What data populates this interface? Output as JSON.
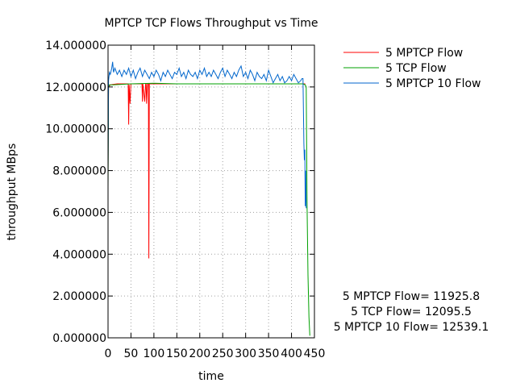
{
  "chart_data": {
    "type": "line",
    "title": "MPTCP TCP Flows Throughput vs Time",
    "xlabel": "time",
    "ylabel": "throughput MBps",
    "xlim": [
      0,
      450
    ],
    "ylim": [
      0,
      14
    ],
    "x_ticks": [
      "0",
      "50",
      "100",
      "150",
      "200",
      "250",
      "300",
      "350",
      "400",
      "450"
    ],
    "y_ticks": [
      "0.000000",
      "2.000000",
      "4.000000",
      "6.000000",
      "8.000000",
      "10.000000",
      "12.000000",
      "14.000000"
    ],
    "grid": true,
    "legend_position": "top-right",
    "annotations": [
      "5 MPTCP Flow= 11925.8",
      "5 TCP Flow= 12095.5",
      "5 MPTCP 10 Flow= 12539.1"
    ],
    "series": [
      {
        "name": "5 MPTCP Flow",
        "color": "#ff0000",
        "x": [
          0,
          1,
          3,
          5,
          10,
          20,
          30,
          40,
          44,
          45,
          46,
          48,
          50,
          60,
          70,
          74,
          75,
          76,
          80,
          82,
          83,
          84,
          86,
          88,
          89,
          90,
          92,
          95,
          100,
          150,
          200,
          250,
          300,
          350,
          400,
          420,
          430
        ],
        "y": [
          8.0,
          12.0,
          12.05,
          12.1,
          12.12,
          12.15,
          12.15,
          12.15,
          12.15,
          10.2,
          12.1,
          11.2,
          12.15,
          12.15,
          12.15,
          12.15,
          11.3,
          12.15,
          11.3,
          12.15,
          12.15,
          11.2,
          12.15,
          12.15,
          3.8,
          12.15,
          12.15,
          12.15,
          12.15,
          12.15,
          12.15,
          12.15,
          12.15,
          12.15,
          12.15,
          12.15,
          12.15
        ]
      },
      {
        "name": "5 TCP Flow",
        "color": "#00a000",
        "x": [
          0,
          1,
          3,
          10,
          50,
          100,
          150,
          200,
          250,
          300,
          350,
          400,
          425,
          430,
          432,
          434,
          436,
          438,
          440
        ],
        "y": [
          7.2,
          12.0,
          12.1,
          12.1,
          12.15,
          12.18,
          12.15,
          12.15,
          12.15,
          12.15,
          12.15,
          12.15,
          12.15,
          12.1,
          12.0,
          6.2,
          3.0,
          1.0,
          0.1
        ]
      },
      {
        "name": "5 MPTCP 10 Flow",
        "color": "#0066cc",
        "x": [
          0,
          1,
          3,
          5,
          8,
          10,
          12,
          15,
          20,
          25,
          30,
          35,
          40,
          45,
          50,
          55,
          60,
          65,
          70,
          75,
          80,
          85,
          90,
          95,
          100,
          105,
          110,
          115,
          120,
          125,
          130,
          135,
          140,
          145,
          150,
          155,
          160,
          165,
          170,
          175,
          180,
          185,
          190,
          195,
          200,
          205,
          210,
          215,
          220,
          225,
          230,
          235,
          240,
          245,
          250,
          255,
          260,
          265,
          270,
          275,
          280,
          285,
          290,
          295,
          300,
          305,
          310,
          315,
          320,
          325,
          330,
          335,
          340,
          345,
          350,
          355,
          360,
          365,
          370,
          375,
          380,
          385,
          390,
          395,
          400,
          405,
          410,
          415,
          420,
          423,
          425,
          427,
          428,
          429,
          430,
          431,
          432
        ],
        "y": [
          8.0,
          12.3,
          12.7,
          12.6,
          12.9,
          13.2,
          12.7,
          12.9,
          12.6,
          12.8,
          12.5,
          12.8,
          12.6,
          12.9,
          12.5,
          12.8,
          12.4,
          12.7,
          12.9,
          12.5,
          12.8,
          12.6,
          12.4,
          12.7,
          12.5,
          12.8,
          12.6,
          12.3,
          12.7,
          12.5,
          12.8,
          12.6,
          12.4,
          12.7,
          12.6,
          12.9,
          12.5,
          12.7,
          12.4,
          12.8,
          12.6,
          12.5,
          12.7,
          12.4,
          12.8,
          12.6,
          12.9,
          12.5,
          12.7,
          12.5,
          12.8,
          12.6,
          12.4,
          12.7,
          12.9,
          12.5,
          12.8,
          12.6,
          12.4,
          12.7,
          12.5,
          12.8,
          13.0,
          12.5,
          12.7,
          12.4,
          12.8,
          12.6,
          12.3,
          12.7,
          12.5,
          12.4,
          12.6,
          12.3,
          12.8,
          12.5,
          12.2,
          12.4,
          12.6,
          12.3,
          12.5,
          12.2,
          12.3,
          12.5,
          12.3,
          12.6,
          12.4,
          12.2,
          12.3,
          12.4,
          12.4,
          9.3,
          8.5,
          9.0,
          6.3,
          8.0,
          6.2
        ]
      }
    ]
  }
}
